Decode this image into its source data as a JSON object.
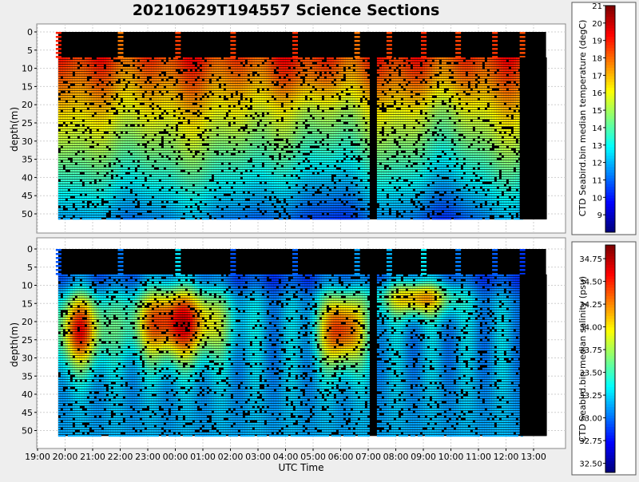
{
  "chart_data": [
    {
      "type": "heatmap",
      "title": "20210629T194557 Science Sections",
      "ylabel": "depth(m)",
      "xlabel": "",
      "y_ticks": [
        "0",
        "5",
        "10",
        "15",
        "20",
        "25",
        "30",
        "35",
        "40",
        "45",
        "50"
      ],
      "ylim": [
        0,
        52
      ],
      "grid": true,
      "colorbar": {
        "label": "CTD Seabird.bin median temperature (degC)",
        "range": [
          8.0,
          21.0
        ],
        "ticks": [
          "21",
          "20",
          "19",
          "18",
          "17",
          "16",
          "15",
          "14",
          "13",
          "12",
          "11",
          "10",
          "9"
        ],
        "tick_values": [
          21,
          20,
          19,
          18,
          17,
          16,
          15,
          14,
          13,
          12,
          11,
          10,
          9
        ]
      },
      "profile_times_utc": [
        "19:45",
        "22:00",
        "00:05",
        "02:05",
        "04:20",
        "06:35",
        "07:45",
        "09:00",
        "10:15",
        "11:35",
        "12:35"
      ],
      "upper_layer_depth_m": [
        7,
        7
      ],
      "note_values": {
        "surface_layer_temp_degC": [
          16,
          19
        ],
        "deep_layer_temp_degC": [
          11,
          13
        ]
      }
    },
    {
      "type": "heatmap",
      "title": "",
      "ylabel": "depth(m)",
      "xlabel": "UTC Time",
      "x_ticks": [
        "19:00",
        "20:00",
        "21:00",
        "22:00",
        "23:00",
        "00:00",
        "01:00",
        "02:00",
        "03:00",
        "04:00",
        "05:00",
        "06:00",
        "07:00",
        "08:00",
        "09:00",
        "10:00",
        "11:00",
        "12:00",
        "13:00"
      ],
      "y_ticks": [
        "0",
        "5",
        "10",
        "15",
        "20",
        "25",
        "30",
        "35",
        "40",
        "45",
        "50"
      ],
      "ylim": [
        0,
        52
      ],
      "grid": true,
      "colorbar": {
        "label": "CTD Seabird.bin median salinity (psu)",
        "range": [
          32.4,
          34.9
        ],
        "ticks": [
          "34.75",
          "34.50",
          "34.25",
          "34.00",
          "33.75",
          "33.50",
          "33.25",
          "33.00",
          "32.75",
          "32.50"
        ],
        "tick_values": [
          34.75,
          34.5,
          34.25,
          34.0,
          33.75,
          33.5,
          33.25,
          33.0,
          32.75,
          32.5
        ]
      },
      "high_salinity_cores": [
        {
          "time": "20:30",
          "depth_m": 22,
          "value": 34.5
        },
        {
          "time": "00:00",
          "depth_m": 20,
          "value": 34.7
        },
        {
          "time": "06:00",
          "depth_m": 22,
          "value": 34.6
        },
        {
          "time": "08:45",
          "depth_m": 13,
          "value": 34.3
        }
      ]
    }
  ]
}
